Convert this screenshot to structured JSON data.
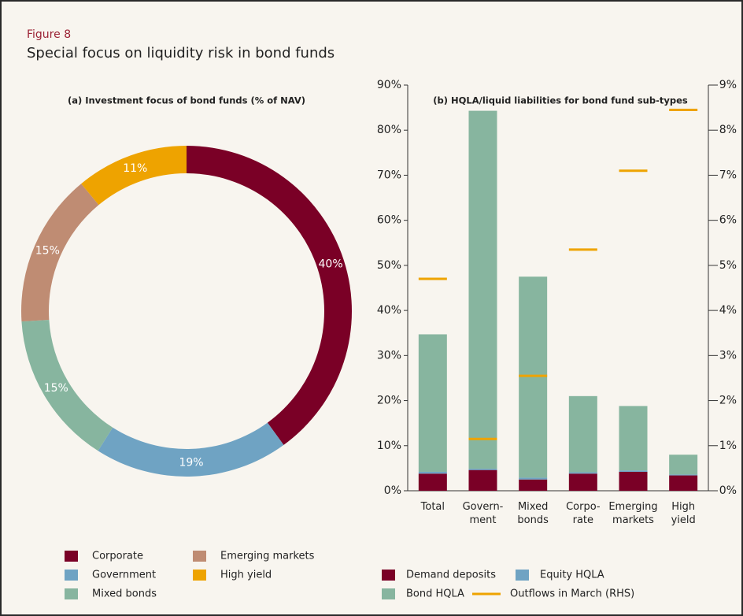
{
  "header": {
    "label": "Figure 8",
    "title": "Special focus on liquidity risk in bond funds"
  },
  "chart_data": [
    {
      "type": "donut",
      "title": "(a) Investment focus of bond funds (% of NAV)",
      "categories": [
        "Corporate",
        "Government",
        "Mixed bonds",
        "Emerging markets",
        "High yield"
      ],
      "values": [
        40,
        19,
        15,
        15,
        11
      ],
      "value_labels": [
        "40%",
        "19%",
        "15%",
        "15%",
        "11%"
      ],
      "colors": [
        "#7a0026",
        "#6fa3c3",
        "#87b59f",
        "#bf8c73",
        "#eea300"
      ]
    },
    {
      "type": "stacked-bar",
      "title": "(b) HQLA/liquid liabilities for bond fund sub-types",
      "categories": [
        "Total",
        "Govern-\nment",
        "Mixed\nbonds",
        "Corpo-\nrate",
        "Emerging\nmarkets",
        "High\nyield"
      ],
      "series": [
        {
          "name": "Demand deposits",
          "color": "#7a0026",
          "values": [
            3.8,
            4.6,
            2.5,
            3.8,
            4.2,
            3.4
          ]
        },
        {
          "name": "Equity HQLA",
          "color": "#6fa3c3",
          "values": [
            0.4,
            0.3,
            0.4,
            0.3,
            0.3,
            0.2
          ]
        },
        {
          "name": "Bond HQLA",
          "color": "#87b59f",
          "values": [
            30.5,
            79.4,
            44.6,
            16.9,
            14.3,
            4.4
          ]
        },
        {
          "name": "Outflows in March (RHS)",
          "color": "#eea300",
          "axis": "y2",
          "marker": "dash",
          "values": [
            4.7,
            1.15,
            2.55,
            5.35,
            7.1,
            8.45
          ]
        }
      ],
      "ylim": [
        0,
        90
      ],
      "yticks": [
        {
          "value": 0,
          "label": "0%"
        },
        {
          "value": 10,
          "label": "10%"
        },
        {
          "value": 20,
          "label": "20%"
        },
        {
          "value": 30,
          "label": "30%"
        },
        {
          "value": 40,
          "label": "40%"
        },
        {
          "value": 50,
          "label": "50%"
        },
        {
          "value": 60,
          "label": "60%"
        },
        {
          "value": 70,
          "label": "70%"
        },
        {
          "value": 80,
          "label": "80%"
        },
        {
          "value": 90,
          "label": "90%"
        }
      ],
      "y2lim": [
        0,
        9
      ],
      "y2ticks": [
        {
          "value": 0,
          "label": "0%"
        },
        {
          "value": 1,
          "label": "1%"
        },
        {
          "value": 2,
          "label": "2%"
        },
        {
          "value": 3,
          "label": "3%"
        },
        {
          "value": 4,
          "label": "4%"
        },
        {
          "value": 5,
          "label": "5%"
        },
        {
          "value": 6,
          "label": "6%"
        },
        {
          "value": 7,
          "label": "7%"
        },
        {
          "value": 8,
          "label": "8%"
        },
        {
          "value": 9,
          "label": "9%"
        }
      ]
    }
  ]
}
